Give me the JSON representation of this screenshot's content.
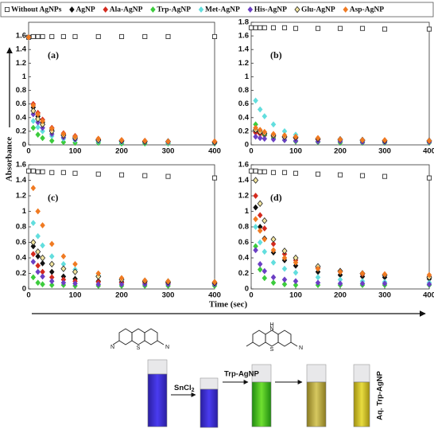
{
  "legend": [
    {
      "name": "Without AgNPs",
      "color": "#333333",
      "marker": "square-open"
    },
    {
      "name": "AgNP",
      "color": "#111111",
      "marker": "diamond"
    },
    {
      "name": "Ala-AgNP",
      "color": "#d42a1e",
      "marker": "diamond"
    },
    {
      "name": "Trp-AgNP",
      "color": "#3ccc3c",
      "marker": "diamond"
    },
    {
      "name": "Met-AgNP",
      "color": "#62dede",
      "marker": "diamond"
    },
    {
      "name": "His-AgNP",
      "color": "#6b3fc4",
      "marker": "diamond"
    },
    {
      "name": "Glu-AgNP",
      "color": "#c9a400",
      "marker": "diamond-open"
    },
    {
      "name": "Asp-AgNP",
      "color": "#f07a22",
      "marker": "diamond"
    }
  ],
  "y_label": "Absorbance",
  "x_label": "Time (sec)",
  "chart_data": [
    {
      "type": "scatter",
      "panel_label": "(a)",
      "xlim": [
        0,
        400
      ],
      "xticks": [
        0,
        100,
        200,
        300,
        400
      ],
      "ylim": [
        0,
        1.8
      ],
      "yticks": [
        0,
        0.2,
        0.4,
        0.6,
        0.8,
        1,
        1.2,
        1.4,
        1.6
      ],
      "x": [
        0,
        10,
        20,
        30,
        50,
        75,
        100,
        150,
        200,
        250,
        300,
        400
      ],
      "series": [
        {
          "values": [
            1.58,
            1.59,
            1.59,
            1.59,
            1.59,
            1.59,
            1.59,
            1.59,
            1.59,
            1.59,
            1.59,
            1.59
          ]
        },
        {
          "values": [
            null,
            0.55,
            0.42,
            0.33,
            0.22,
            0.15,
            0.12,
            0.08,
            0.06,
            0.05,
            0.05,
            0.04
          ]
        },
        {
          "values": [
            null,
            0.6,
            0.47,
            0.37,
            0.25,
            0.17,
            0.13,
            0.09,
            0.07,
            0.06,
            0.05,
            0.05
          ]
        },
        {
          "values": [
            null,
            0.25,
            0.15,
            0.1,
            0.06,
            0.04,
            0.03,
            0.03,
            0.02,
            0.02,
            0.02,
            0.02
          ]
        },
        {
          "values": [
            null,
            0.35,
            0.26,
            0.2,
            0.13,
            0.09,
            0.07,
            0.05,
            0.04,
            0.04,
            0.03,
            0.03
          ]
        },
        {
          "values": [
            null,
            0.45,
            0.33,
            0.25,
            0.16,
            0.11,
            0.08,
            0.06,
            0.05,
            0.04,
            0.04,
            0.03
          ]
        },
        {
          "values": [
            null,
            0.5,
            0.38,
            0.3,
            0.2,
            0.14,
            0.1,
            0.07,
            0.06,
            0.05,
            0.05,
            0.04
          ]
        },
        {
          "values": [
            1.58,
            0.58,
            0.45,
            0.35,
            0.24,
            0.16,
            0.12,
            0.09,
            0.07,
            0.06,
            0.05,
            0.05
          ]
        }
      ]
    },
    {
      "type": "scatter",
      "panel_label": "(b)",
      "xlim": [
        0,
        400
      ],
      "xticks": [
        0,
        100,
        200,
        300,
        400
      ],
      "ylim": [
        0,
        1.8
      ],
      "yticks": [
        0,
        0.2,
        0.4,
        0.6,
        0.8,
        1,
        1.2,
        1.4,
        1.6,
        1.8
      ],
      "x": [
        0,
        10,
        20,
        30,
        50,
        75,
        100,
        150,
        200,
        250,
        300,
        400
      ],
      "series": [
        {
          "values": [
            1.72,
            1.72,
            1.72,
            1.72,
            1.72,
            1.72,
            1.71,
            1.71,
            1.71,
            1.71,
            1.7,
            1.7
          ]
        },
        {
          "values": [
            null,
            0.2,
            0.17,
            0.15,
            0.13,
            0.11,
            0.1,
            0.08,
            0.07,
            0.06,
            0.06,
            0.05
          ]
        },
        {
          "values": [
            null,
            0.18,
            0.16,
            0.14,
            0.12,
            0.11,
            0.1,
            0.08,
            0.07,
            0.07,
            0.06,
            0.06
          ]
        },
        {
          "values": [
            null,
            0.3,
            0.2,
            0.15,
            0.1,
            0.07,
            0.05,
            0.04,
            0.03,
            0.03,
            0.03,
            0.03
          ]
        },
        {
          "values": [
            null,
            0.65,
            0.52,
            0.42,
            0.3,
            0.2,
            0.15,
            0.09,
            0.06,
            0.05,
            0.04,
            0.04
          ]
        },
        {
          "values": [
            null,
            0.12,
            0.1,
            0.09,
            0.08,
            0.07,
            0.06,
            0.05,
            0.05,
            0.04,
            0.04,
            0.04
          ]
        },
        {
          "values": [
            null,
            0.22,
            0.19,
            0.17,
            0.14,
            0.12,
            0.11,
            0.09,
            0.08,
            0.07,
            0.06,
            0.06
          ]
        },
        {
          "values": [
            null,
            0.25,
            0.22,
            0.19,
            0.16,
            0.14,
            0.12,
            0.1,
            0.08,
            0.07,
            0.07,
            0.06
          ]
        }
      ]
    },
    {
      "type": "scatter",
      "panel_label": "(c)",
      "xlim": [
        0,
        400
      ],
      "xticks": [
        0,
        100,
        200,
        300,
        400
      ],
      "ylim": [
        0,
        1.6
      ],
      "yticks": [
        0,
        0.2,
        0.4,
        0.6,
        0.8,
        1,
        1.2,
        1.4,
        1.6
      ],
      "x": [
        0,
        10,
        20,
        30,
        50,
        75,
        100,
        150,
        200,
        250,
        300,
        400
      ],
      "series": [
        {
          "values": [
            1.52,
            1.52,
            1.51,
            1.51,
            1.5,
            1.5,
            1.49,
            1.48,
            1.47,
            1.46,
            1.45,
            1.43
          ]
        },
        {
          "values": [
            null,
            0.55,
            0.42,
            0.33,
            0.22,
            0.16,
            0.13,
            0.1,
            0.09,
            0.08,
            0.08,
            0.07
          ]
        },
        {
          "values": [
            null,
            0.45,
            0.3,
            0.22,
            0.15,
            0.12,
            0.1,
            0.09,
            0.08,
            0.08,
            0.07,
            0.07
          ]
        },
        {
          "values": [
            null,
            0.15,
            0.08,
            0.06,
            0.05,
            0.05,
            0.04,
            0.04,
            0.04,
            0.04,
            0.04,
            0.04
          ]
        },
        {
          "values": [
            null,
            0.85,
            0.68,
            0.56,
            0.42,
            0.32,
            0.25,
            0.17,
            0.13,
            0.11,
            0.1,
            0.09
          ]
        },
        {
          "values": [
            null,
            0.35,
            0.22,
            0.16,
            0.1,
            0.08,
            0.07,
            0.06,
            0.06,
            0.06,
            0.06,
            0.06
          ]
        },
        {
          "values": [
            null,
            0.6,
            0.48,
            0.4,
            0.32,
            0.26,
            0.22,
            0.16,
            0.12,
            0.1,
            0.09,
            0.08
          ]
        },
        {
          "values": [
            null,
            1.3,
            1.0,
            0.82,
            0.58,
            0.42,
            0.32,
            0.2,
            0.14,
            0.11,
            0.1,
            0.09
          ]
        }
      ]
    },
    {
      "type": "scatter",
      "panel_label": "(d)",
      "xlim": [
        0,
        400
      ],
      "xticks": [
        0,
        100,
        200,
        300,
        400
      ],
      "ylim": [
        0,
        1.6
      ],
      "yticks": [
        0,
        0.2,
        0.4,
        0.6,
        0.8,
        1,
        1.2,
        1.4,
        1.6
      ],
      "x": [
        0,
        10,
        20,
        30,
        50,
        75,
        100,
        150,
        200,
        250,
        300,
        400
      ],
      "series": [
        {
          "values": [
            1.52,
            1.52,
            1.51,
            1.51,
            1.5,
            1.5,
            1.49,
            1.48,
            1.47,
            1.46,
            1.45,
            1.43
          ]
        },
        {
          "values": [
            null,
            1.05,
            0.8,
            0.65,
            0.47,
            0.37,
            0.3,
            0.22,
            0.18,
            0.16,
            0.15,
            0.13
          ]
        },
        {
          "values": [
            null,
            1.2,
            0.95,
            0.78,
            0.58,
            0.45,
            0.37,
            0.27,
            0.22,
            0.19,
            0.18,
            0.16
          ]
        },
        {
          "values": [
            null,
            0.55,
            0.25,
            0.14,
            0.08,
            0.06,
            0.05,
            0.05,
            0.05,
            0.05,
            0.05,
            0.05
          ]
        },
        {
          "values": [
            null,
            0.8,
            0.6,
            0.48,
            0.34,
            0.26,
            0.21,
            0.15,
            0.12,
            0.1,
            0.09,
            0.08
          ]
        },
        {
          "values": [
            null,
            0.5,
            0.32,
            0.23,
            0.15,
            0.12,
            0.1,
            0.08,
            0.07,
            0.07,
            0.07,
            0.06
          ]
        },
        {
          "values": [
            null,
            1.4,
            1.1,
            0.88,
            0.64,
            0.49,
            0.4,
            0.29,
            0.23,
            0.2,
            0.18,
            0.15
          ]
        },
        {
          "values": [
            null,
            0.9,
            0.75,
            0.64,
            0.5,
            0.4,
            0.34,
            0.26,
            0.22,
            0.2,
            0.19,
            0.18
          ]
        }
      ]
    }
  ],
  "scheme": {
    "step1": "SnCl",
    "step1_sub": "2",
    "step2": "Trp-AgNP",
    "product": "Aq. Trp-AgNP",
    "atoms_left": [
      "N",
      "S",
      "N"
    ],
    "atoms_right": [
      "H",
      "N",
      "S",
      "N"
    ]
  }
}
